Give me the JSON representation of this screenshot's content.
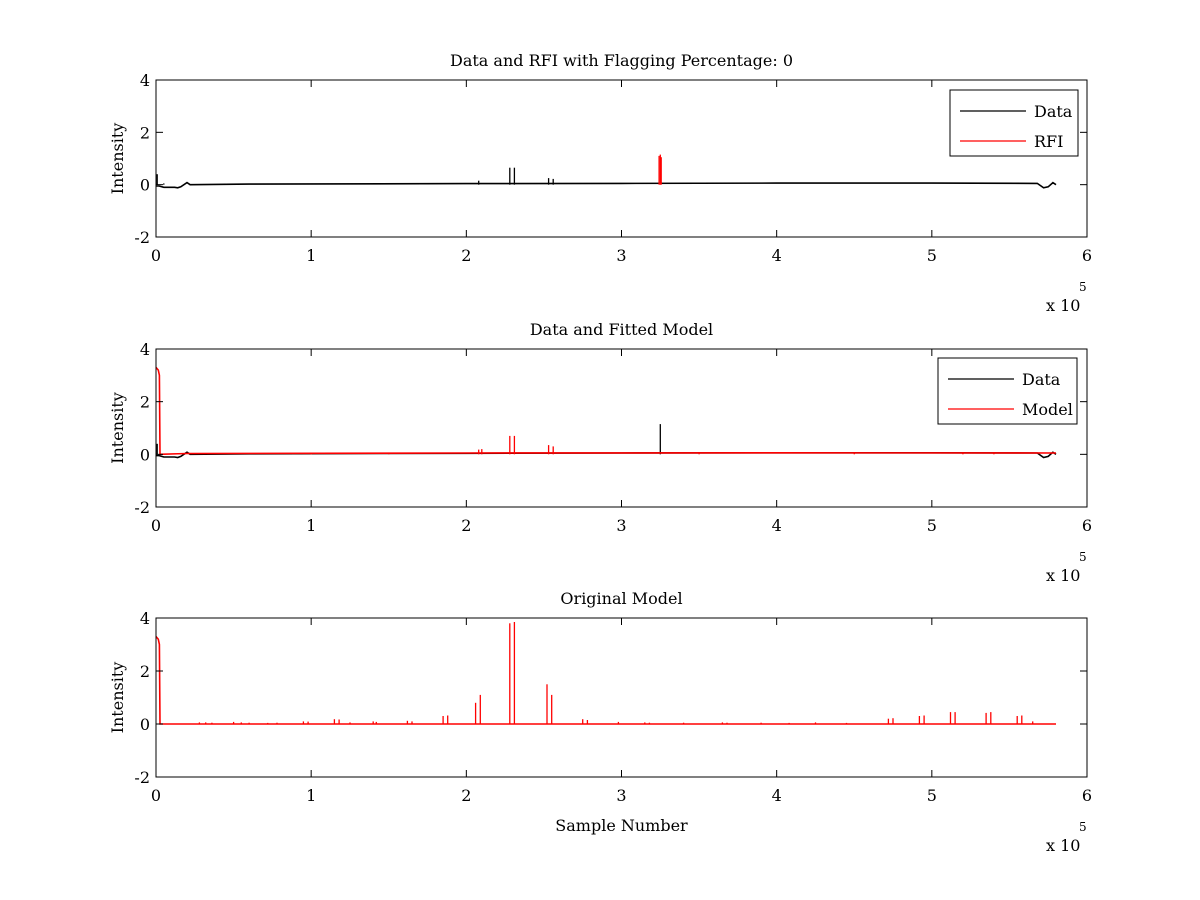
{
  "figure": {
    "background": "#ffffff"
  },
  "chart_data": [
    {
      "type": "line",
      "title": "Data and RFI with Flagging Percentage: 0",
      "xlabel": "",
      "ylabel": "Intensity",
      "xlim": [
        0,
        600000
      ],
      "ylim": [
        -2,
        4
      ],
      "xticks": [
        0,
        1,
        2,
        3,
        4,
        5,
        6
      ],
      "yticks": [
        -2,
        0,
        2,
        4
      ],
      "x_multiplier_label": "x 10",
      "x_multiplier_exp": "5",
      "legend": "top-right",
      "series": [
        {
          "name": "Data",
          "color": "#000000",
          "baseline": [
            [
              0,
              -0.05
            ],
            [
              2000,
              -0.05
            ],
            [
              5000,
              -0.1
            ],
            [
              12000,
              -0.1
            ],
            [
              14000,
              -0.12
            ],
            [
              16000,
              -0.08
            ],
            [
              20000,
              0.08
            ],
            [
              22000,
              0.0
            ],
            [
              60000,
              0.02
            ],
            [
              200000,
              0.04
            ],
            [
              300000,
              0.05
            ],
            [
              400000,
              0.06
            ],
            [
              500000,
              0.06
            ],
            [
              568000,
              0.05
            ],
            [
              572000,
              -0.12
            ],
            [
              575000,
              -0.08
            ],
            [
              578000,
              0.08
            ],
            [
              580000,
              0.0
            ]
          ],
          "spikes": [
            [
              800,
              0.4
            ],
            [
              208000,
              0.15
            ],
            [
              228000,
              0.65
            ],
            [
              231000,
              0.65
            ],
            [
              253000,
              0.25
            ],
            [
              256000,
              0.22
            ],
            [
              5000,
              0.05
            ]
          ]
        },
        {
          "name": "RFI",
          "color": "#ff0000",
          "spikes": [
            [
              325000,
              1.15
            ],
            [
              324200,
              1.1
            ],
            [
              325600,
              1.05
            ]
          ]
        }
      ]
    },
    {
      "type": "line",
      "title": "Data and Fitted Model",
      "xlabel": "",
      "ylabel": "Intensity",
      "xlim": [
        0,
        600000
      ],
      "ylim": [
        -2,
        4
      ],
      "xticks": [
        0,
        1,
        2,
        3,
        4,
        5,
        6
      ],
      "yticks": [
        -2,
        0,
        2,
        4
      ],
      "x_multiplier_label": "x 10",
      "x_multiplier_exp": "5",
      "legend": "top-right",
      "series": [
        {
          "name": "Data",
          "color": "#000000",
          "baseline": [
            [
              0,
              -0.05
            ],
            [
              2000,
              -0.05
            ],
            [
              5000,
              -0.1
            ],
            [
              12000,
              -0.1
            ],
            [
              14000,
              -0.12
            ],
            [
              16000,
              -0.08
            ],
            [
              20000,
              0.08
            ],
            [
              22000,
              0.0
            ],
            [
              60000,
              0.02
            ],
            [
              200000,
              0.04
            ],
            [
              300000,
              0.05
            ],
            [
              400000,
              0.06
            ],
            [
              500000,
              0.06
            ],
            [
              568000,
              0.05
            ],
            [
              572000,
              -0.12
            ],
            [
              575000,
              -0.08
            ],
            [
              578000,
              0.08
            ],
            [
              580000,
              0.0
            ]
          ],
          "spikes": [
            [
              800,
              0.4
            ],
            [
              325000,
              1.15
            ]
          ]
        },
        {
          "name": "Model",
          "color": "#ff0000",
          "baseline": [
            [
              0,
              3.3
            ],
            [
              1500,
              3.2
            ],
            [
              2200,
              3.0
            ],
            [
              2600,
              0.0
            ],
            [
              20000,
              0.03
            ],
            [
              200000,
              0.05
            ],
            [
              400000,
              0.06
            ],
            [
              580000,
              0.05
            ]
          ],
          "spikes": [
            [
              208000,
              0.18
            ],
            [
              210000,
              0.2
            ],
            [
              228000,
              0.7
            ],
            [
              231000,
              0.7
            ],
            [
              253000,
              0.35
            ],
            [
              256000,
              0.3
            ],
            [
              100000,
              0.06
            ],
            [
              150000,
              0.07
            ],
            [
              350000,
              0.07
            ],
            [
              450000,
              0.08
            ],
            [
              520000,
              0.08
            ],
            [
              540000,
              0.08
            ]
          ]
        }
      ]
    },
    {
      "type": "line",
      "title": "Original Model",
      "xlabel": "Sample Number",
      "ylabel": "Intensity",
      "xlim": [
        0,
        600000
      ],
      "ylim": [
        -2,
        4
      ],
      "xticks": [
        0,
        1,
        2,
        3,
        4,
        5,
        6
      ],
      "yticks": [
        -2,
        0,
        2,
        4
      ],
      "x_multiplier_label": "x 10",
      "x_multiplier_exp": "5",
      "legend": "none",
      "series": [
        {
          "name": "",
          "color": "#ff0000",
          "baseline": [
            [
              0,
              3.3
            ],
            [
              1500,
              3.2
            ],
            [
              2200,
              3.0
            ],
            [
              2600,
              0.0
            ],
            [
              580000,
              0.0
            ]
          ],
          "spikes": [
            [
              28000,
              0.06
            ],
            [
              32000,
              0.06
            ],
            [
              36000,
              0.05
            ],
            [
              50000,
              0.08
            ],
            [
              55000,
              0.06
            ],
            [
              60000,
              0.05
            ],
            [
              72000,
              0.04
            ],
            [
              78000,
              0.05
            ],
            [
              95000,
              0.1
            ],
            [
              98000,
              0.09
            ],
            [
              115000,
              0.18
            ],
            [
              118000,
              0.17
            ],
            [
              125000,
              0.06
            ],
            [
              140000,
              0.1
            ],
            [
              142000,
              0.08
            ],
            [
              162000,
              0.12
            ],
            [
              165000,
              0.1
            ],
            [
              185000,
              0.3
            ],
            [
              188000,
              0.32
            ],
            [
              206000,
              0.8
            ],
            [
              209000,
              1.1
            ],
            [
              228000,
              3.8
            ],
            [
              231000,
              3.85
            ],
            [
              252000,
              1.5
            ],
            [
              255000,
              1.1
            ],
            [
              275000,
              0.18
            ],
            [
              278000,
              0.15
            ],
            [
              298000,
              0.08
            ],
            [
              315000,
              0.06
            ],
            [
              318000,
              0.05
            ],
            [
              340000,
              0.05
            ],
            [
              365000,
              0.06
            ],
            [
              368000,
              0.05
            ],
            [
              390000,
              0.05
            ],
            [
              408000,
              0.04
            ],
            [
              425000,
              0.06
            ],
            [
              445000,
              0.04
            ],
            [
              472000,
              0.2
            ],
            [
              475000,
              0.22
            ],
            [
              492000,
              0.3
            ],
            [
              495000,
              0.32
            ],
            [
              512000,
              0.45
            ],
            [
              515000,
              0.45
            ],
            [
              535000,
              0.42
            ],
            [
              538000,
              0.45
            ],
            [
              555000,
              0.3
            ],
            [
              558000,
              0.32
            ],
            [
              565000,
              0.1
            ]
          ]
        }
      ]
    }
  ]
}
